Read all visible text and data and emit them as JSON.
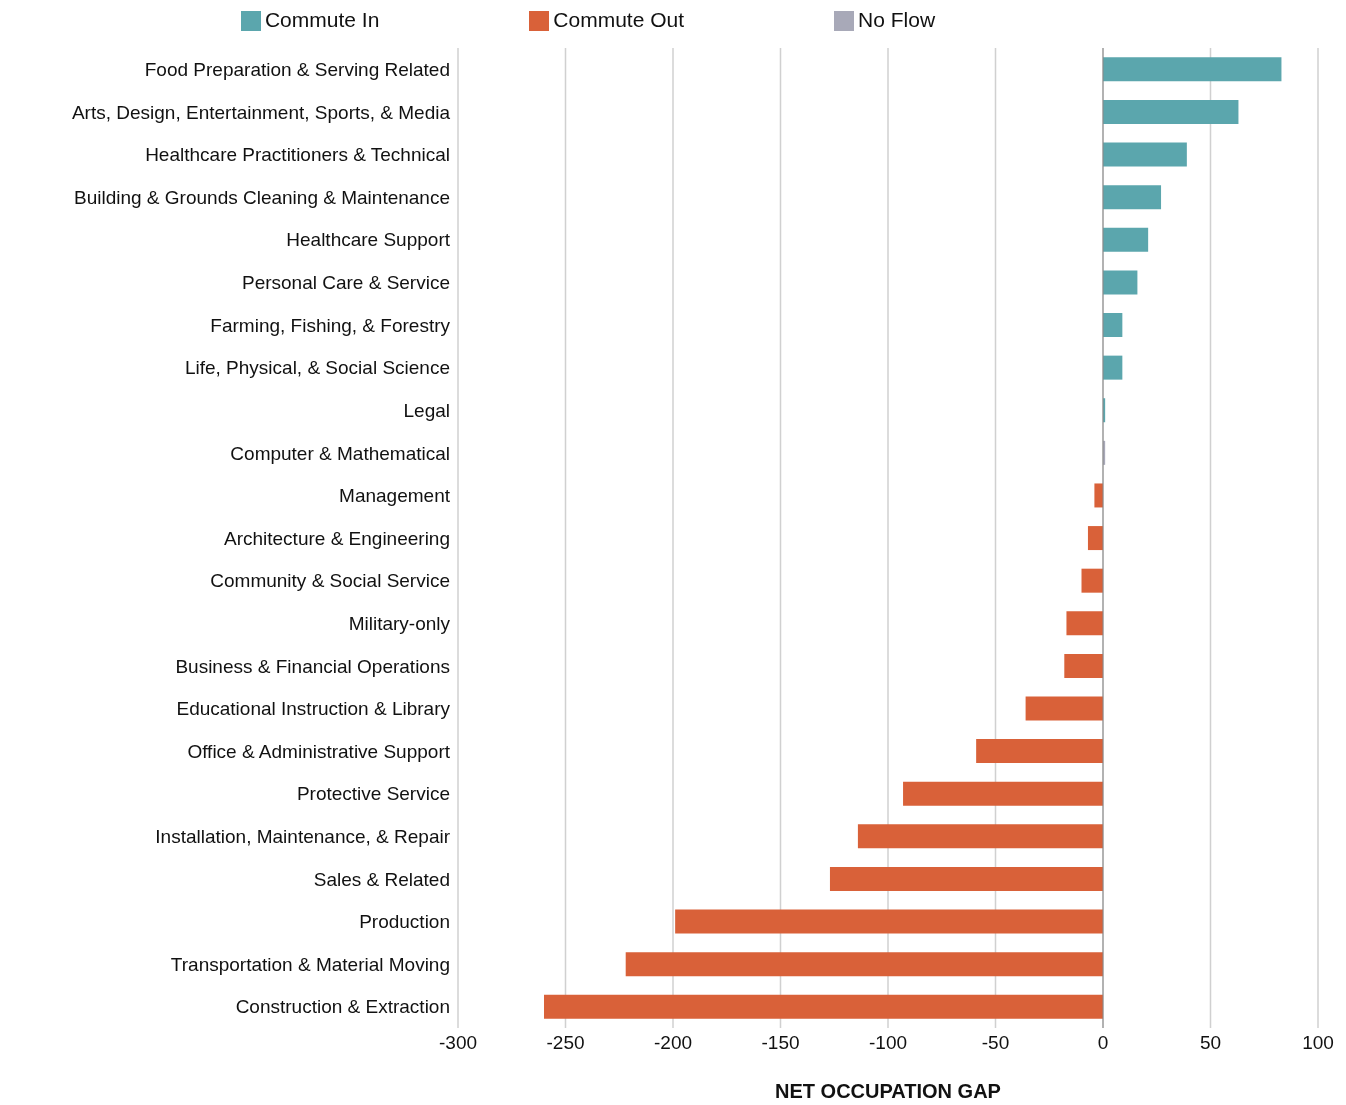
{
  "chart_data": {
    "type": "bar",
    "orientation": "horizontal",
    "stacked": true,
    "xlabel": "NET OCCUPATION GAP",
    "categories": [
      "Food Preparation & Serving Related",
      "Arts, Design, Entertainment, Sports, & Media",
      "Healthcare Practitioners & Technical",
      "Building & Grounds Cleaning & Maintenance",
      "Healthcare Support",
      "Personal Care & Service",
      "Farming, Fishing, & Forestry",
      "Life, Physical, & Social Science",
      "Legal",
      "Computer & Mathematical",
      "Management",
      "Architecture & Engineering",
      "Community & Social Service",
      "Military-only",
      "Business & Financial Operations",
      "Educational Instruction & Library",
      "Office & Administrative Support",
      "Protective Service",
      "Installation, Maintenance, & Repair",
      "Sales & Related",
      "Production",
      "Transportation & Material Moving",
      "Construction & Extraction"
    ],
    "series": [
      {
        "name": "Commute In",
        "color": "#5ba6ad",
        "values": [
          83,
          63,
          39,
          27,
          21,
          16,
          9,
          9,
          1,
          null,
          null,
          null,
          null,
          null,
          null,
          null,
          null,
          null,
          null,
          null,
          null,
          null,
          null
        ]
      },
      {
        "name": "Commute Out",
        "color": "#d96139",
        "values": [
          null,
          null,
          null,
          null,
          null,
          null,
          null,
          null,
          null,
          null,
          -4,
          -7,
          -10,
          -17,
          -18,
          -36,
          -59,
          -93,
          -114,
          -127,
          -199,
          -222,
          -260
        ]
      },
      {
        "name": "No Flow",
        "color": "#a8a9b8",
        "values": [
          null,
          null,
          null,
          null,
          null,
          null,
          null,
          null,
          null,
          1,
          null,
          null,
          null,
          null,
          null,
          null,
          null,
          null,
          null,
          null,
          null,
          null,
          null
        ]
      }
    ],
    "xlim": [
      -300,
      100
    ],
    "xticks": [
      -300,
      -250,
      -200,
      -150,
      -100,
      -50,
      0,
      50,
      100
    ],
    "ref_lines": [
      {
        "axis": "x",
        "value": 0,
        "color": "#888888"
      }
    ],
    "grid": "x",
    "legend": "top"
  }
}
